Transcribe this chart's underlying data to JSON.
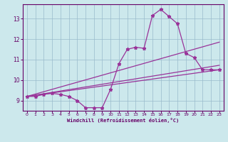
{
  "xlabel": "Windchill (Refroidissement éolien,°C)",
  "bg_color": "#cce8ec",
  "line_color": "#993399",
  "grid_color": "#99bbcc",
  "axis_color": "#660066",
  "text_color": "#660066",
  "xlim": [
    -0.5,
    23.5
  ],
  "ylim": [
    8.5,
    13.7
  ],
  "xticks": [
    0,
    1,
    2,
    3,
    4,
    5,
    6,
    7,
    8,
    9,
    10,
    11,
    12,
    13,
    14,
    15,
    16,
    17,
    18,
    19,
    20,
    21,
    22,
    23
  ],
  "yticks": [
    9,
    10,
    11,
    12,
    13
  ],
  "main_series": {
    "x": [
      0,
      1,
      2,
      3,
      4,
      5,
      6,
      7,
      8,
      9,
      10,
      11,
      12,
      13,
      14,
      15,
      16,
      17,
      18,
      19,
      20,
      21,
      22,
      23
    ],
    "y": [
      9.2,
      9.2,
      9.3,
      9.35,
      9.3,
      9.2,
      9.0,
      8.65,
      8.65,
      8.65,
      9.55,
      10.8,
      11.5,
      11.6,
      11.55,
      13.15,
      13.45,
      13.1,
      12.75,
      11.3,
      11.1,
      10.5,
      10.5,
      10.5
    ]
  },
  "straight_lines": [
    {
      "x0": 0,
      "y0": 9.2,
      "x1": 23,
      "y1": 11.85
    },
    {
      "x0": 0,
      "y0": 9.2,
      "x1": 23,
      "y1": 10.72
    },
    {
      "x0": 0,
      "y0": 9.2,
      "x1": 23,
      "y1": 10.5
    }
  ]
}
